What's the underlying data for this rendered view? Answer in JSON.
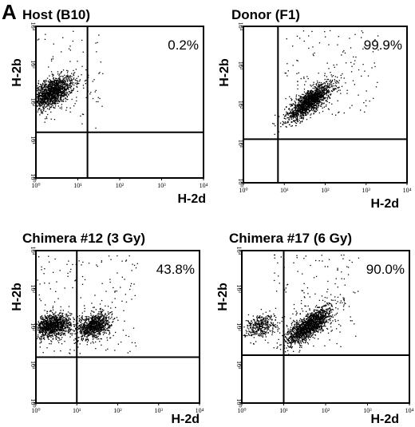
{
  "figure": {
    "panel_letter": "A",
    "colors": {
      "dots": "#000000",
      "frame": "#000000",
      "background": "#ffffff"
    }
  },
  "chart_data": [
    {
      "type": "scatter",
      "title": "Host (B10)",
      "xlabel": "H-2d",
      "ylabel": "H-2b",
      "x_scale": "log",
      "y_scale": "log",
      "xlim": [
        1,
        10000
      ],
      "ylim": [
        1,
        10000
      ],
      "x_ticks": [
        "10⁰",
        "10¹",
        "10²",
        "10³",
        "10⁴"
      ],
      "y_ticks": [
        "10⁰",
        "10¹",
        "10²",
        "10³",
        "10⁴"
      ],
      "quadrant_gate": {
        "x": 17,
        "y": 16
      },
      "annotations": [
        {
          "text": "0.2%",
          "position": "top-right"
        }
      ],
      "populations": [
        {
          "center": [
            2.2,
            180
          ],
          "spread": [
            0.28,
            0.22
          ],
          "correlation": 0.55,
          "count": 1500
        }
      ],
      "background_events": {
        "x_range": [
          1,
          40
        ],
        "y_range": [
          20,
          8000
        ],
        "count": 90
      }
    },
    {
      "type": "scatter",
      "title": "Donor (F1)",
      "xlabel": "H-2d",
      "ylabel": "H-2b",
      "x_scale": "log",
      "y_scale": "log",
      "xlim": [
        1,
        10000
      ],
      "ylim": [
        1,
        10000
      ],
      "x_ticks": [
        "10⁰",
        "10¹",
        "10²",
        "10³",
        "10⁴"
      ],
      "y_ticks": [
        "10⁰",
        "10¹",
        "10²",
        "10³",
        "10⁴"
      ],
      "quadrant_gate": {
        "x": 7,
        "y": 13
      },
      "annotations": [
        {
          "text": "99.9%",
          "position": "top-right"
        }
      ],
      "populations": [
        {
          "center": [
            40,
            120
          ],
          "spread": [
            0.28,
            0.24
          ],
          "correlation": 0.8,
          "count": 1500
        }
      ],
      "background_events": {
        "x_range": [
          10,
          2000
        ],
        "y_range": [
          50,
          8000
        ],
        "count": 140
      }
    },
    {
      "type": "scatter",
      "title": "Chimera #12 (3 Gy)",
      "xlabel": "H-2d",
      "ylabel": "H-2b",
      "x_scale": "log",
      "y_scale": "log",
      "xlim": [
        1,
        10000
      ],
      "ylim": [
        1,
        10000
      ],
      "x_ticks": [
        "10⁰",
        "10¹",
        "10²",
        "10³",
        "10⁴"
      ],
      "y_ticks": [
        "10⁰",
        "10¹",
        "10²",
        "10³",
        "10⁴"
      ],
      "quadrant_gate": {
        "x": 10,
        "y": 16
      },
      "annotations": [
        {
          "text": "43.8%",
          "position": "top-right"
        }
      ],
      "populations": [
        {
          "center": [
            2.5,
            110
          ],
          "spread": [
            0.22,
            0.15
          ],
          "correlation": 0.25,
          "count": 1100
        },
        {
          "center": [
            26,
            110
          ],
          "spread": [
            0.2,
            0.17
          ],
          "correlation": 0.35,
          "count": 900
        }
      ],
      "background_events": {
        "x_range": [
          1,
          300
        ],
        "y_range": [
          20,
          8000
        ],
        "count": 170
      }
    },
    {
      "type": "scatter",
      "title": "Chimera #17 (6 Gy)",
      "xlabel": "H-2d",
      "ylabel": "H-2b",
      "x_scale": "log",
      "y_scale": "log",
      "xlim": [
        1,
        10000
      ],
      "ylim": [
        1,
        10000
      ],
      "x_ticks": [
        "10⁰",
        "10¹",
        "10²",
        "10³",
        "10⁴"
      ],
      "y_ticks": [
        "10⁰",
        "10¹",
        "10²",
        "10³",
        "10⁴"
      ],
      "quadrant_gate": {
        "x": 10,
        "y": 18
      },
      "annotations": [
        {
          "text": "90.0%",
          "position": "top-right"
        }
      ],
      "populations": [
        {
          "center": [
            2.6,
            110
          ],
          "spread": [
            0.2,
            0.15
          ],
          "correlation": 0.3,
          "count": 380
        },
        {
          "center": [
            40,
            110
          ],
          "spread": [
            0.26,
            0.24
          ],
          "correlation": 0.75,
          "count": 1500
        }
      ],
      "background_events": {
        "x_range": [
          5,
          600
        ],
        "y_range": [
          30,
          8000
        ],
        "count": 150
      }
    }
  ]
}
